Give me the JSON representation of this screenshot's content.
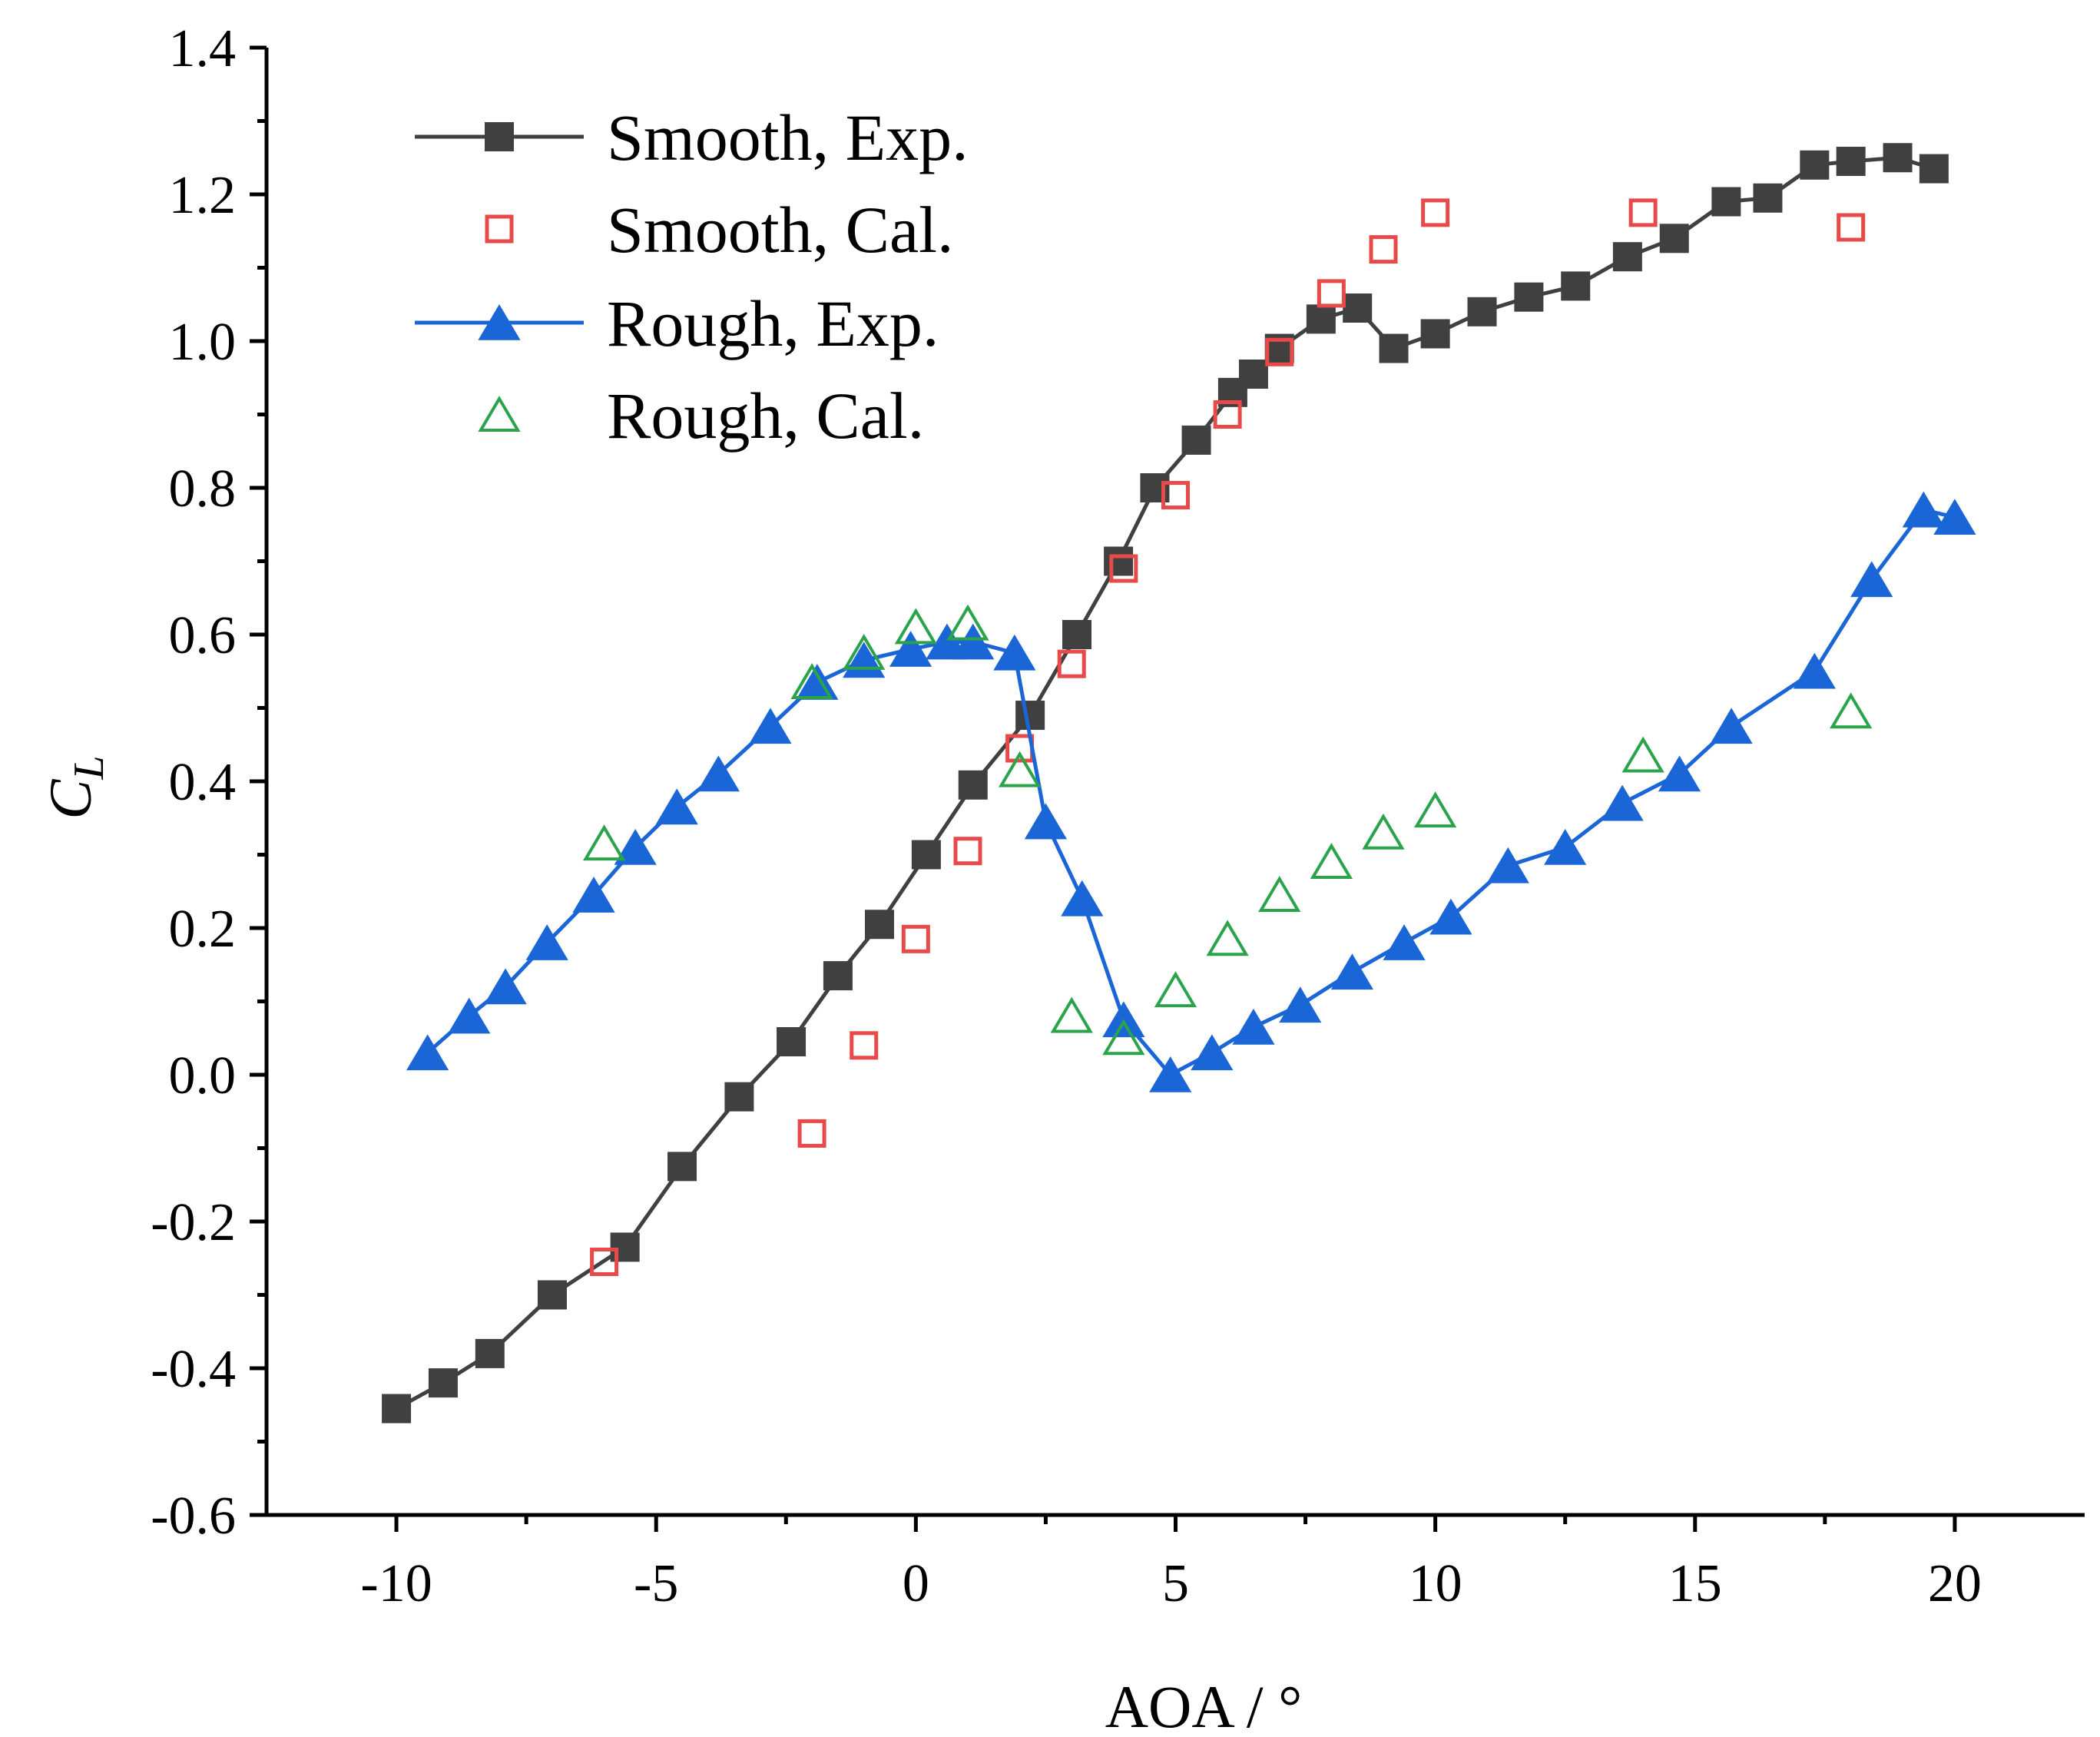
{
  "chart_data": {
    "type": "line",
    "title": "",
    "xlabel": "AOA / °",
    "ylabel_main": "C",
    "ylabel_sub": "L",
    "xlim": [
      -12.5,
      22.5
    ],
    "ylim": [
      -0.6,
      1.4
    ],
    "x_ticks": [
      -10,
      -5,
      0,
      5,
      10,
      15,
      20
    ],
    "x_tick_labels": [
      "-10",
      "-5",
      "0",
      "5",
      "10",
      "15",
      "20"
    ],
    "y_ticks": [
      -0.6,
      -0.4,
      -0.2,
      0.0,
      0.2,
      0.4,
      0.6,
      0.8,
      1.0,
      1.2,
      1.4
    ],
    "y_tick_labels": [
      "-0.6",
      "-0.4",
      "-0.2",
      "0.0",
      "0.2",
      "0.4",
      "0.6",
      "0.8",
      "1.0",
      "1.2",
      "1.4"
    ],
    "grid": false,
    "legend_position": "top-left",
    "series": [
      {
        "name": "Smooth, Exp.",
        "color": "#404040",
        "marker": "square-filled",
        "line": true,
        "x": [
          -10,
          -9.1,
          -8.2,
          -7.0,
          -5.6,
          -4.5,
          -3.4,
          -2.4,
          -1.5,
          -0.7,
          0.2,
          1.1,
          2.2,
          3.1,
          3.9,
          4.6,
          5.4,
          6.1,
          6.5,
          7.0,
          7.8,
          8.5,
          9.2,
          10.0,
          10.9,
          11.8,
          12.7,
          13.7,
          14.6,
          15.6,
          16.4,
          17.3,
          18.0,
          18.9,
          19.6
        ],
        "y": [
          -0.455,
          -0.42,
          -0.38,
          -0.3,
          -0.235,
          -0.125,
          -0.03,
          0.045,
          0.135,
          0.205,
          0.3,
          0.395,
          0.49,
          0.6,
          0.7,
          0.8,
          0.865,
          0.93,
          0.955,
          0.99,
          1.03,
          1.045,
          0.99,
          1.01,
          1.04,
          1.06,
          1.075,
          1.115,
          1.14,
          1.19,
          1.195,
          1.24,
          1.245,
          1.25,
          1.235
        ]
      },
      {
        "name": "Smooth, Cal.",
        "color": "#e84a4a",
        "marker": "square-open",
        "line": false,
        "x": [
          -6,
          -2,
          -1,
          0,
          1,
          2,
          3,
          4,
          5,
          6,
          7,
          8,
          9,
          10,
          14,
          18
        ],
        "y": [
          -0.255,
          -0.08,
          0.04,
          0.185,
          0.305,
          0.445,
          0.56,
          0.69,
          0.79,
          0.9,
          0.985,
          1.065,
          1.125,
          1.175,
          1.175,
          1.155
        ]
      },
      {
        "name": "Rough, Exp.",
        "color": "#1b66d6",
        "marker": "triangle-filled",
        "line": true,
        "x": [
          -9.4,
          -8.6,
          -7.9,
          -7.1,
          -6.2,
          -5.4,
          -4.6,
          -3.8,
          -2.8,
          -1.9,
          -1.0,
          -0.1,
          0.6,
          1.1,
          1.9,
          2.5,
          3.2,
          4.0,
          4.9,
          5.7,
          6.5,
          7.4,
          8.4,
          9.4,
          10.3,
          11.4,
          12.5,
          13.6,
          14.7,
          15.7,
          17.3,
          18.4,
          19.4,
          20.0
        ],
        "y": [
          0.03,
          0.08,
          0.12,
          0.18,
          0.245,
          0.31,
          0.365,
          0.41,
          0.475,
          0.535,
          0.565,
          0.58,
          0.59,
          0.59,
          0.575,
          0.345,
          0.24,
          0.075,
          0.0,
          0.03,
          0.065,
          0.095,
          0.14,
          0.18,
          0.215,
          0.285,
          0.31,
          0.37,
          0.41,
          0.475,
          0.55,
          0.675,
          0.77,
          0.76
        ]
      },
      {
        "name": "Rough, Cal.",
        "color": "#2aa34a",
        "marker": "triangle-open",
        "line": false,
        "x": [
          -6,
          -2,
          -1,
          0,
          1,
          2,
          3,
          4,
          5,
          6,
          7,
          8,
          9,
          10,
          14,
          18
        ],
        "y": [
          0.315,
          0.535,
          0.575,
          0.61,
          0.615,
          0.415,
          0.08,
          0.05,
          0.115,
          0.185,
          0.245,
          0.29,
          0.33,
          0.36,
          0.435,
          0.495
        ]
      }
    ]
  }
}
